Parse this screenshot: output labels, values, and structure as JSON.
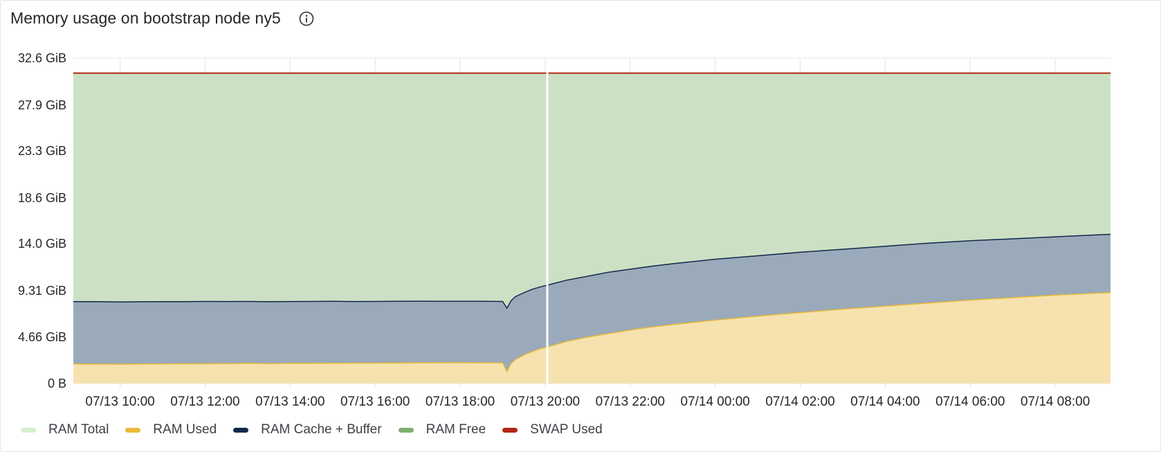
{
  "panel": {
    "title": "Memory usage on bootstrap node ny5",
    "info_icon": "info-circle-icon"
  },
  "colors": {
    "ram_total": "#d5f0cf",
    "ram_used": "#e8b93a",
    "ram_used_fill": "#f6e2ae",
    "ram_cache_buffer": "#10294a",
    "ram_cache_fill": "#9aaaba",
    "ram_free": "#7db06f",
    "ram_free_fill": "#cce0c5",
    "swap_used": "#b22614"
  },
  "chart_data": {
    "type": "area",
    "stacked": true,
    "ylim": [
      0,
      32.6
    ],
    "y_unit": "GiB",
    "y_ticks": [
      "0 B",
      "4.66 GiB",
      "9.31 GiB",
      "14.0 GiB",
      "18.6 GiB",
      "23.3 GiB",
      "27.9 GiB",
      "32.6 GiB"
    ],
    "y_tick_values": [
      0,
      4.66,
      9.31,
      14.0,
      18.6,
      23.3,
      27.9,
      32.6
    ],
    "x_ticks": [
      "07/13 10:00",
      "07/13 12:00",
      "07/13 14:00",
      "07/13 16:00",
      "07/13 18:00",
      "07/13 20:00",
      "07/13 22:00",
      "07/14 00:00",
      "07/14 02:00",
      "07/14 04:00",
      "07/14 06:00",
      "07/14 08:00"
    ],
    "x_tick_hours": [
      10,
      12,
      14,
      16,
      18,
      20,
      22,
      24,
      26,
      28,
      30,
      32
    ],
    "x_range_hours": [
      8.9,
      33.3
    ],
    "cursor_hour": 20.05,
    "legend_placement": "bottom-left",
    "x_hours": [
      8.9,
      9.5,
      10.0,
      10.5,
      11.0,
      11.5,
      12.0,
      12.5,
      13.0,
      13.5,
      14.0,
      14.5,
      15.0,
      15.5,
      16.0,
      16.5,
      17.0,
      17.5,
      18.0,
      18.5,
      19.0,
      19.1,
      19.2,
      19.3,
      19.5,
      19.7,
      19.9,
      20.05,
      20.5,
      21.0,
      21.5,
      22.0,
      22.5,
      23.0,
      24.0,
      25.0,
      26.0,
      27.0,
      28.0,
      29.0,
      30.0,
      31.0,
      32.0,
      33.0,
      33.3
    ],
    "series": [
      {
        "name": "RAM Used",
        "values": [
          1.95,
          1.94,
          1.93,
          1.95,
          1.96,
          1.97,
          1.98,
          2.0,
          2.01,
          2.0,
          2.01,
          2.02,
          2.03,
          2.04,
          2.04,
          2.05,
          2.06,
          2.08,
          2.09,
          2.07,
          2.06,
          1.2,
          2.0,
          2.4,
          2.85,
          3.2,
          3.5,
          3.65,
          4.2,
          4.65,
          5.0,
          5.35,
          5.65,
          5.9,
          6.35,
          6.75,
          7.1,
          7.45,
          7.75,
          8.05,
          8.35,
          8.6,
          8.85,
          9.05,
          9.1
        ]
      },
      {
        "name": "RAM Cache + Buffer",
        "values": [
          8.2,
          8.2,
          8.17,
          8.19,
          8.2,
          8.2,
          8.22,
          8.21,
          8.22,
          8.2,
          8.21,
          8.22,
          8.23,
          8.21,
          8.22,
          8.23,
          8.25,
          8.24,
          8.24,
          8.23,
          8.22,
          7.55,
          8.3,
          8.7,
          9.1,
          9.45,
          9.7,
          9.85,
          10.35,
          10.75,
          11.15,
          11.45,
          11.75,
          12.0,
          12.45,
          12.8,
          13.15,
          13.45,
          13.75,
          14.05,
          14.3,
          14.5,
          14.7,
          14.9,
          14.95
        ]
      },
      {
        "name": "RAM Total",
        "values": [
          31.1,
          31.1,
          31.1,
          31.1,
          31.1,
          31.1,
          31.1,
          31.1,
          31.1,
          31.1,
          31.1,
          31.1,
          31.1,
          31.1,
          31.1,
          31.1,
          31.1,
          31.1,
          31.1,
          31.1,
          31.1,
          31.1,
          31.1,
          31.1,
          31.1,
          31.1,
          31.1,
          31.1,
          31.1,
          31.1,
          31.1,
          31.1,
          31.1,
          31.1,
          31.1,
          31.1,
          31.1,
          31.1,
          31.1,
          31.1,
          31.1,
          31.1,
          31.1,
          31.1,
          31.1
        ]
      }
    ]
  },
  "legend": [
    {
      "label": "RAM Total",
      "color_key": "ram_total"
    },
    {
      "label": "RAM Used",
      "color_key": "ram_used"
    },
    {
      "label": "RAM Cache + Buffer",
      "color_key": "ram_cache_buffer"
    },
    {
      "label": "RAM Free",
      "color_key": "ram_free"
    },
    {
      "label": "SWAP Used",
      "color_key": "swap_used"
    }
  ]
}
